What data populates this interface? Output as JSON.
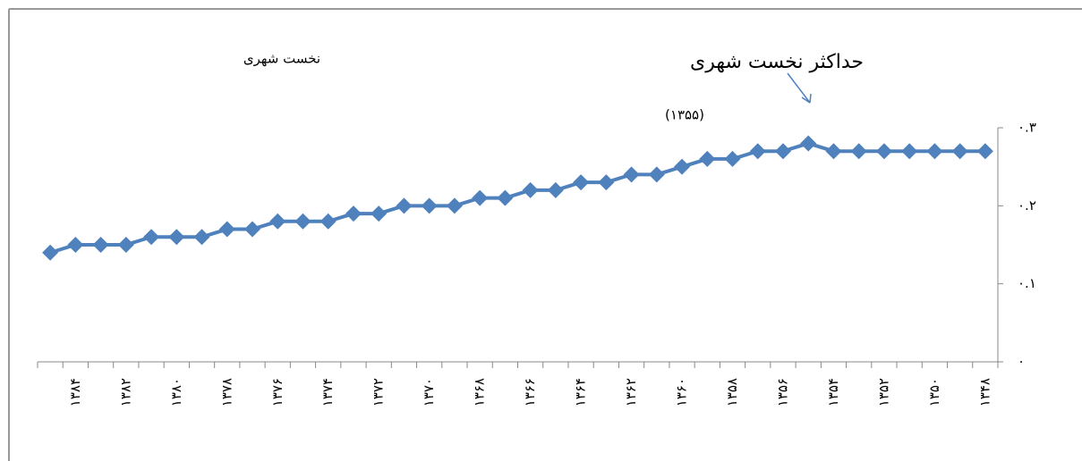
{
  "chart_data": {
    "type": "line",
    "categories": [
      null,
      "۱۳۸۴",
      null,
      "۱۳۸۲",
      null,
      "۱۳۸۰",
      null,
      "۱۳۷۸",
      null,
      "۱۳۷۶",
      null,
      "۱۳۷۴",
      null,
      "۱۳۷۲",
      null,
      "۱۳۷۰",
      null,
      "۱۳۶۸",
      null,
      "۱۳۶۶",
      null,
      "۱۳۶۴",
      null,
      "۱۳۶۲",
      null,
      "۱۳۶۰",
      null,
      "۱۳۵۸",
      null,
      "۱۳۵۶",
      null,
      "۱۳۵۴",
      null,
      "۱۳۵۲",
      null,
      "۱۳۵۰",
      null,
      "۱۳۴۸"
    ],
    "series": [
      {
        "name": "نخست شهری",
        "color": "#4f81bd",
        "values": [
          0.14,
          0.15,
          0.15,
          0.15,
          0.16,
          0.16,
          0.16,
          0.17,
          0.17,
          0.18,
          0.18,
          0.18,
          0.19,
          0.19,
          0.2,
          0.2,
          0.2,
          0.21,
          0.21,
          0.22,
          0.22,
          0.23,
          0.23,
          0.24,
          0.24,
          0.25,
          0.26,
          0.26,
          0.27,
          0.27,
          0.28,
          0.27,
          0.27,
          0.27,
          0.27,
          0.27,
          0.27,
          0.27
        ]
      }
    ],
    "ylim": [
      0,
      0.3
    ],
    "yticks": [
      {
        "value": 0,
        "label": "۰"
      },
      {
        "value": 0.1,
        "label": "۰.۱"
      },
      {
        "value": 0.2,
        "label": "۰.۲"
      },
      {
        "value": 0.3,
        "label": "۰.۳"
      }
    ],
    "annotations": [
      "حداکثر نخست شهری",
      "(۱۳۵۵)"
    ]
  }
}
